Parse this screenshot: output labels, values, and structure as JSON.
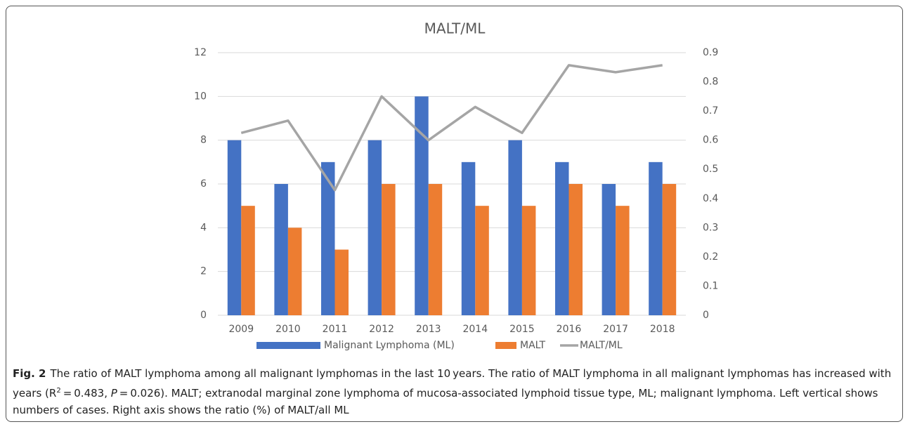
{
  "chart_data": {
    "type": "bar_line",
    "title": "MALT/ML",
    "categories": [
      "2009",
      "2010",
      "2011",
      "2012",
      "2013",
      "2014",
      "2015",
      "2016",
      "2017",
      "2018"
    ],
    "series": [
      {
        "name": "Malignant Lymphoma (ML)",
        "color": "#4472c4",
        "type": "bar",
        "values": [
          8,
          6,
          7,
          8,
          10,
          7,
          8,
          7,
          6,
          7
        ]
      },
      {
        "name": "MALT",
        "color": "#ed7d31",
        "type": "bar",
        "values": [
          5,
          4,
          3,
          6,
          6,
          5,
          5,
          6,
          5,
          6
        ]
      },
      {
        "name": "MALT/ML",
        "color": "#a5a5a5",
        "type": "line",
        "axis": "y2",
        "values": [
          0.625,
          0.667,
          0.429,
          0.75,
          0.6,
          0.714,
          0.625,
          0.857,
          0.833,
          0.857
        ]
      }
    ],
    "ylim": [
      0,
      12
    ],
    "yticks": [
      0,
      2,
      4,
      6,
      8,
      10,
      12
    ],
    "y2lim": [
      0,
      0.9
    ],
    "y2ticks": [
      0,
      0.1,
      0.2,
      0.3,
      0.4,
      0.5,
      0.6,
      0.7,
      0.8,
      0.9
    ],
    "grid": true,
    "legend": "bottom"
  },
  "caption": {
    "label": "Fig. 2",
    "parts": [
      "The ratio of MALT lymphoma among all malignant lymphomas in the last 10 years. The ratio of MALT lymphoma in all malignant lymphomas has increased with years (R",
      "2",
      " = 0.483, ",
      "P",
      " = 0.026). MALT; extranodal marginal zone lymphoma of mucosa-associated lymphoid tissue type, ML; malignant lymphoma. Left vertical shows numbers of cases. Right axis shows the ratio (%) of MALT/all ML"
    ]
  }
}
